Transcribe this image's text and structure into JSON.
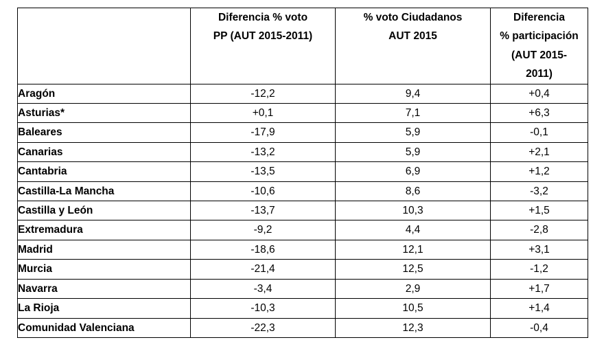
{
  "table": {
    "headers": [
      {
        "lines": []
      },
      {
        "lines": [
          "Diferencia % voto",
          "PP (AUT 2015-2011)"
        ]
      },
      {
        "lines": [
          "% voto Ciudadanos",
          "AUT 2015"
        ]
      },
      {
        "lines": [
          "Diferencia",
          "% participación",
          "(AUT 2015-",
          "2011)"
        ]
      }
    ],
    "rows": [
      {
        "region": "Aragón",
        "pp_diff": "-12,2",
        "cs_vote": "9,4",
        "participation_diff": "+0,4"
      },
      {
        "region": "Asturias*",
        "pp_diff": "+0,1",
        "cs_vote": "7,1",
        "participation_diff": "+6,3"
      },
      {
        "region": "Baleares",
        "pp_diff": "-17,9",
        "cs_vote": "5,9",
        "participation_diff": "-0,1"
      },
      {
        "region": "Canarias",
        "pp_diff": "-13,2",
        "cs_vote": "5,9",
        "participation_diff": "+2,1"
      },
      {
        "region": "Cantabria",
        "pp_diff": "-13,5",
        "cs_vote": "6,9",
        "participation_diff": "+1,2"
      },
      {
        "region": "Castilla-La Mancha",
        "pp_diff": "-10,6",
        "cs_vote": "8,6",
        "participation_diff": "-3,2"
      },
      {
        "region": "Castilla y León",
        "pp_diff": "-13,7",
        "cs_vote": "10,3",
        "participation_diff": "+1,5"
      },
      {
        "region": "Extremadura",
        "pp_diff": "-9,2",
        "cs_vote": "4,4",
        "participation_diff": "-2,8"
      },
      {
        "region": "Madrid",
        "pp_diff": "-18,6",
        "cs_vote": "12,1",
        "participation_diff": "+3,1"
      },
      {
        "region": "Murcia",
        "pp_diff": "-21,4",
        "cs_vote": "12,5",
        "participation_diff": "-1,2"
      },
      {
        "region": "Navarra",
        "pp_diff": "-3,4",
        "cs_vote": "2,9",
        "participation_diff": "+1,7"
      },
      {
        "region": "La Rioja",
        "pp_diff": "-10,3",
        "cs_vote": "10,5",
        "participation_diff": "+1,4"
      },
      {
        "region": "Comunidad Valenciana",
        "pp_diff": "-22,3",
        "cs_vote": "12,3",
        "participation_diff": "-0,4"
      }
    ]
  }
}
